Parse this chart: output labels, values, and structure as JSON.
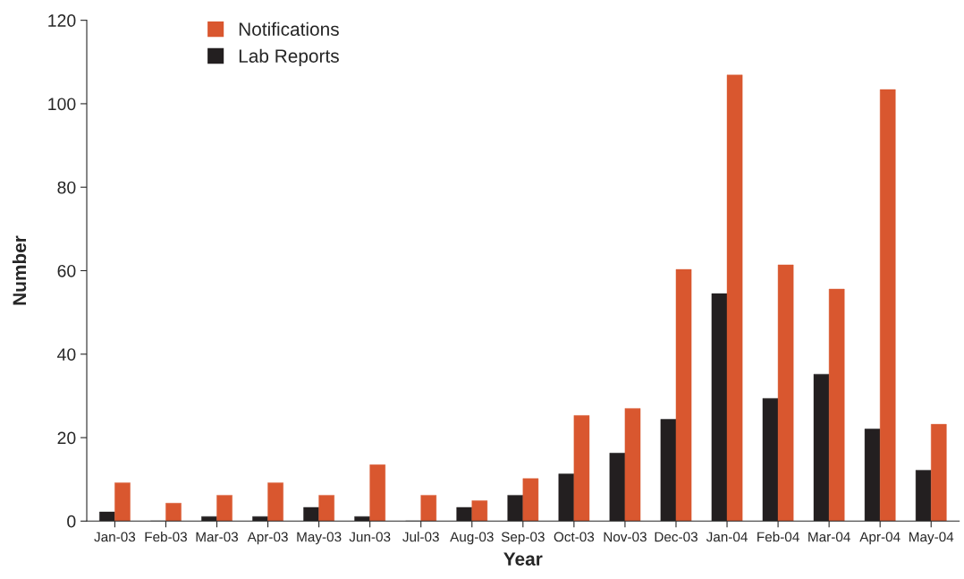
{
  "chart_data": {
    "type": "bar",
    "xlabel": "Year",
    "ylabel": "Number",
    "categories": [
      "Jan-03",
      "Feb-03",
      "Mar-03",
      "Apr-03",
      "May-03",
      "Jun-03",
      "Jul-03",
      "Aug-03",
      "Sep-03",
      "Oct-03",
      "Nov-03",
      "Dec-03",
      "Jan-04",
      "Feb-04",
      "Mar-04",
      "Apr-04",
      "May-04"
    ],
    "series": [
      {
        "name": "Lab Reports",
        "color": "#231f20",
        "values": [
          2.2,
          0,
          1.1,
          1.1,
          3.3,
          1.1,
          0,
          3.3,
          6.2,
          11.3,
          16.3,
          24.4,
          54.5,
          29.4,
          35.2,
          22.1,
          12.2
        ]
      },
      {
        "name": "Notifications",
        "color": "#d9572f",
        "values": [
          9.2,
          4.3,
          6.2,
          9.2,
          6.2,
          13.5,
          6.2,
          4.9,
          10.2,
          25.3,
          27,
          60.3,
          106.9,
          61.4,
          55.6,
          103.4,
          23.2
        ]
      }
    ],
    "ylim": [
      0,
      120
    ],
    "yticks": [
      0,
      20,
      40,
      60,
      80,
      100,
      120
    ],
    "grid": false,
    "legend": "top left"
  }
}
